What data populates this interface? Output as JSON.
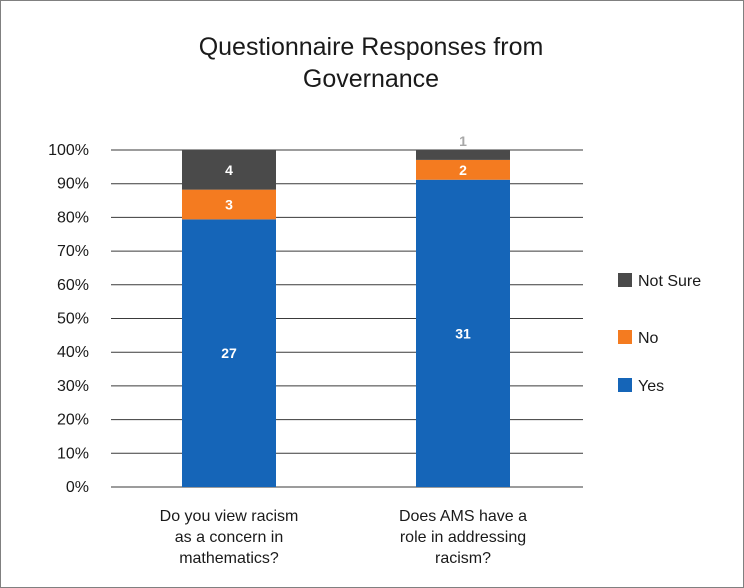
{
  "chart_data": {
    "type": "bar",
    "stacked": true,
    "normalized_percent": true,
    "title": "Questionnaire Responses from Governance",
    "categories": [
      "Do you view racism as a concern in mathematics?",
      "Does AMS have a role in addressing racism?"
    ],
    "series": [
      {
        "name": "Yes",
        "values": [
          27,
          31
        ],
        "color": "#1565b8"
      },
      {
        "name": "No",
        "values": [
          3,
          2
        ],
        "color": "#f47b20"
      },
      {
        "name": "Not Sure",
        "values": [
          4,
          1
        ],
        "color": "#4a4a4a"
      }
    ],
    "ylim": [
      0,
      100
    ],
    "yticks": [
      "0%",
      "10%",
      "20%",
      "30%",
      "40%",
      "50%",
      "60%",
      "70%",
      "80%",
      "90%",
      "100%"
    ],
    "grid": true,
    "legend_position": "right",
    "legend_order": [
      "Not Sure",
      "No",
      "Yes"
    ]
  }
}
